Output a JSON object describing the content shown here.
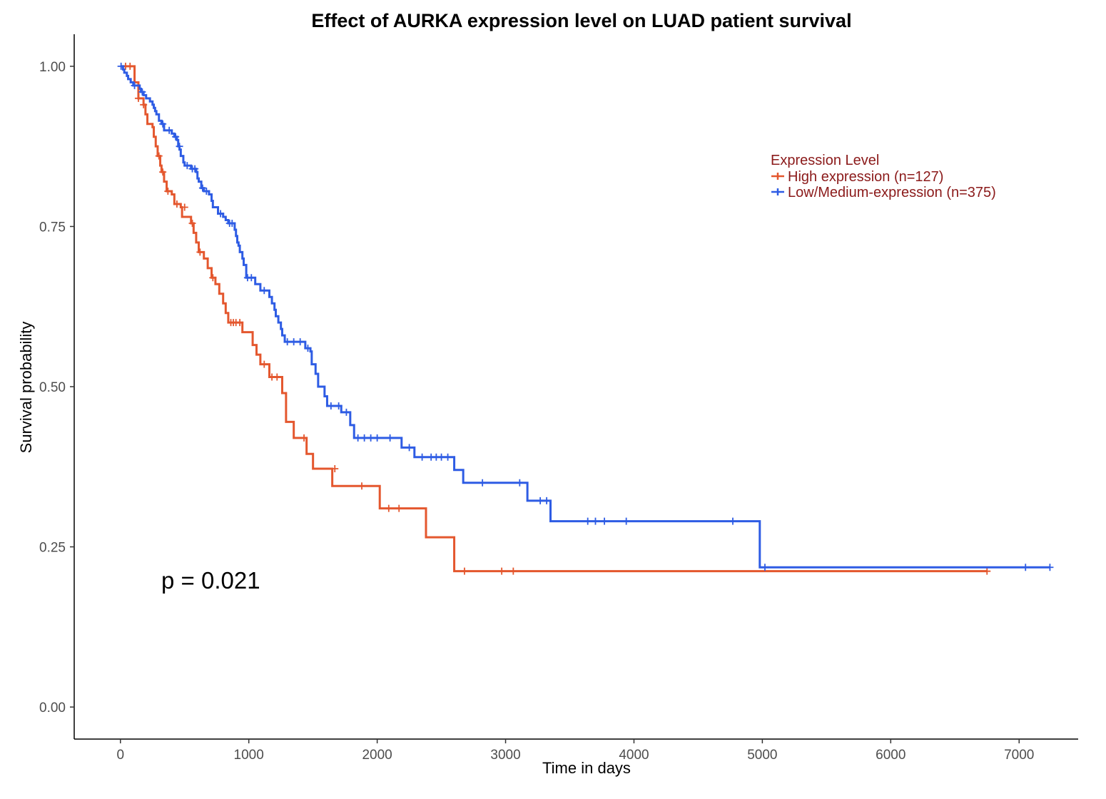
{
  "chart_data": {
    "type": "line",
    "subtype": "kaplan-meier",
    "title": "Effect of AURKA expression level on LUAD patient survival",
    "xlabel": "Time in days",
    "ylabel": "Survival probability",
    "xlim": [
      -360,
      7460
    ],
    "ylim": [
      -0.05,
      1.05
    ],
    "xticks": [
      0,
      1000,
      2000,
      3000,
      4000,
      5000,
      6000,
      7000
    ],
    "xtick_labels": [
      "0",
      "1000",
      "2000",
      "3000",
      "4000",
      "5000",
      "6000",
      "7000"
    ],
    "yticks": [
      0,
      0.25,
      0.5,
      0.75,
      1.0
    ],
    "ytick_labels": [
      "0.00",
      "0.25",
      "0.50",
      "0.75",
      "1.00"
    ],
    "grid": false,
    "legend": {
      "title": "Expression Level",
      "placement": "top-right",
      "text_color": "#8b1a1a"
    },
    "annotation": "p = 0.021",
    "series": [
      {
        "name": "High expression (n=127)",
        "color": "#e4572e",
        "steps": [
          [
            0,
            1.0
          ],
          [
            110,
            0.975
          ],
          [
            140,
            0.95
          ],
          [
            180,
            0.94
          ],
          [
            195,
            0.925
          ],
          [
            210,
            0.91
          ],
          [
            250,
            0.905
          ],
          [
            260,
            0.89
          ],
          [
            275,
            0.875
          ],
          [
            290,
            0.86
          ],
          [
            310,
            0.845
          ],
          [
            320,
            0.835
          ],
          [
            340,
            0.82
          ],
          [
            360,
            0.805
          ],
          [
            400,
            0.8
          ],
          [
            420,
            0.785
          ],
          [
            470,
            0.78
          ],
          [
            480,
            0.765
          ],
          [
            550,
            0.755
          ],
          [
            570,
            0.74
          ],
          [
            590,
            0.725
          ],
          [
            610,
            0.71
          ],
          [
            650,
            0.7
          ],
          [
            680,
            0.685
          ],
          [
            710,
            0.67
          ],
          [
            740,
            0.66
          ],
          [
            770,
            0.645
          ],
          [
            800,
            0.63
          ],
          [
            820,
            0.615
          ],
          [
            840,
            0.6
          ],
          [
            950,
            0.585
          ],
          [
            1030,
            0.565
          ],
          [
            1060,
            0.55
          ],
          [
            1090,
            0.535
          ],
          [
            1160,
            0.515
          ],
          [
            1260,
            0.49
          ],
          [
            1290,
            0.445
          ],
          [
            1350,
            0.42
          ],
          [
            1450,
            0.395
          ],
          [
            1500,
            0.372
          ],
          [
            1650,
            0.345
          ],
          [
            2020,
            0.31
          ],
          [
            2380,
            0.265
          ],
          [
            2600,
            0.212
          ],
          [
            6750,
            0.212
          ]
        ],
        "censor": [
          [
            40,
            1.0
          ],
          [
            75,
            1.0
          ],
          [
            140,
            0.95
          ],
          [
            180,
            0.94
          ],
          [
            300,
            0.86
          ],
          [
            330,
            0.835
          ],
          [
            370,
            0.805
          ],
          [
            440,
            0.785
          ],
          [
            500,
            0.78
          ],
          [
            560,
            0.755
          ],
          [
            620,
            0.71
          ],
          [
            720,
            0.67
          ],
          [
            860,
            0.6
          ],
          [
            880,
            0.6
          ],
          [
            900,
            0.6
          ],
          [
            930,
            0.6
          ],
          [
            1120,
            0.535
          ],
          [
            1180,
            0.515
          ],
          [
            1220,
            0.515
          ],
          [
            1430,
            0.42
          ],
          [
            1670,
            0.372
          ],
          [
            1880,
            0.345
          ],
          [
            2090,
            0.31
          ],
          [
            2170,
            0.31
          ],
          [
            2680,
            0.212
          ],
          [
            2970,
            0.212
          ],
          [
            3060,
            0.212
          ],
          [
            6750,
            0.212
          ]
        ]
      },
      {
        "name": "Low/Medium-expression (n=375)",
        "color": "#2e5ce4",
        "steps": [
          [
            0,
            1.0
          ],
          [
            20,
            0.995
          ],
          [
            30,
            0.99
          ],
          [
            50,
            0.985
          ],
          [
            60,
            0.98
          ],
          [
            80,
            0.975
          ],
          [
            100,
            0.97
          ],
          [
            150,
            0.965
          ],
          [
            160,
            0.96
          ],
          [
            180,
            0.955
          ],
          [
            200,
            0.95
          ],
          [
            230,
            0.945
          ],
          [
            250,
            0.94
          ],
          [
            260,
            0.935
          ],
          [
            270,
            0.93
          ],
          [
            280,
            0.925
          ],
          [
            300,
            0.915
          ],
          [
            320,
            0.91
          ],
          [
            340,
            0.9
          ],
          [
            400,
            0.895
          ],
          [
            420,
            0.89
          ],
          [
            440,
            0.885
          ],
          [
            450,
            0.875
          ],
          [
            460,
            0.87
          ],
          [
            470,
            0.86
          ],
          [
            490,
            0.85
          ],
          [
            500,
            0.845
          ],
          [
            550,
            0.84
          ],
          [
            590,
            0.835
          ],
          [
            600,
            0.825
          ],
          [
            610,
            0.82
          ],
          [
            630,
            0.81
          ],
          [
            650,
            0.805
          ],
          [
            690,
            0.8
          ],
          [
            710,
            0.79
          ],
          [
            720,
            0.78
          ],
          [
            760,
            0.77
          ],
          [
            800,
            0.765
          ],
          [
            820,
            0.76
          ],
          [
            840,
            0.755
          ],
          [
            890,
            0.745
          ],
          [
            900,
            0.735
          ],
          [
            910,
            0.725
          ],
          [
            920,
            0.72
          ],
          [
            930,
            0.71
          ],
          [
            950,
            0.7
          ],
          [
            960,
            0.69
          ],
          [
            980,
            0.67
          ],
          [
            1050,
            0.66
          ],
          [
            1090,
            0.65
          ],
          [
            1160,
            0.64
          ],
          [
            1180,
            0.63
          ],
          [
            1200,
            0.62
          ],
          [
            1210,
            0.61
          ],
          [
            1230,
            0.6
          ],
          [
            1250,
            0.59
          ],
          [
            1260,
            0.58
          ],
          [
            1280,
            0.57
          ],
          [
            1440,
            0.56
          ],
          [
            1480,
            0.555
          ],
          [
            1490,
            0.535
          ],
          [
            1520,
            0.52
          ],
          [
            1540,
            0.5
          ],
          [
            1590,
            0.485
          ],
          [
            1610,
            0.47
          ],
          [
            1720,
            0.46
          ],
          [
            1790,
            0.44
          ],
          [
            1820,
            0.42
          ],
          [
            2190,
            0.405
          ],
          [
            2290,
            0.39
          ],
          [
            2600,
            0.37
          ],
          [
            2670,
            0.35
          ],
          [
            3170,
            0.322
          ],
          [
            3350,
            0.29
          ],
          [
            4980,
            0.218
          ],
          [
            7240,
            0.218
          ]
        ],
        "censor": [
          [
            5,
            1.0
          ],
          [
            110,
            0.97
          ],
          [
            170,
            0.96
          ],
          [
            330,
            0.91
          ],
          [
            380,
            0.9
          ],
          [
            430,
            0.89
          ],
          [
            460,
            0.875
          ],
          [
            520,
            0.845
          ],
          [
            560,
            0.84
          ],
          [
            580,
            0.84
          ],
          [
            640,
            0.81
          ],
          [
            670,
            0.805
          ],
          [
            780,
            0.77
          ],
          [
            850,
            0.755
          ],
          [
            870,
            0.755
          ],
          [
            990,
            0.67
          ],
          [
            1020,
            0.67
          ],
          [
            1120,
            0.65
          ],
          [
            1300,
            0.57
          ],
          [
            1350,
            0.57
          ],
          [
            1400,
            0.57
          ],
          [
            1460,
            0.56
          ],
          [
            1640,
            0.47
          ],
          [
            1700,
            0.47
          ],
          [
            1760,
            0.46
          ],
          [
            1850,
            0.42
          ],
          [
            1900,
            0.42
          ],
          [
            1950,
            0.42
          ],
          [
            2000,
            0.42
          ],
          [
            2100,
            0.42
          ],
          [
            2250,
            0.405
          ],
          [
            2350,
            0.39
          ],
          [
            2420,
            0.39
          ],
          [
            2460,
            0.39
          ],
          [
            2500,
            0.39
          ],
          [
            2550,
            0.39
          ],
          [
            2820,
            0.35
          ],
          [
            3110,
            0.35
          ],
          [
            3270,
            0.322
          ],
          [
            3320,
            0.322
          ],
          [
            3640,
            0.29
          ],
          [
            3700,
            0.29
          ],
          [
            3770,
            0.29
          ],
          [
            3940,
            0.29
          ],
          [
            4770,
            0.29
          ],
          [
            5020,
            0.218
          ],
          [
            7050,
            0.218
          ],
          [
            7240,
            0.218
          ]
        ]
      }
    ]
  }
}
